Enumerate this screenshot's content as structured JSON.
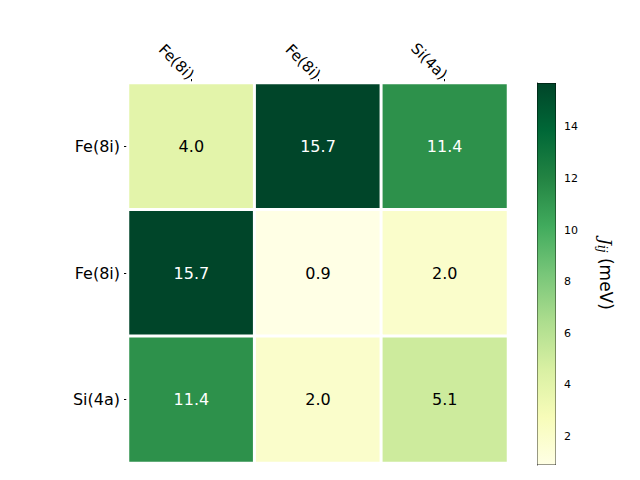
{
  "chart_data": {
    "type": "heatmap",
    "x_categories": [
      "Fe(8i)",
      "Fe(8i)",
      "Si(4a)"
    ],
    "y_categories": [
      "Fe(8i)",
      "Fe(8i)",
      "Si(4a)"
    ],
    "values": [
      [
        4.0,
        15.7,
        11.4
      ],
      [
        15.7,
        0.9,
        2.0
      ],
      [
        11.4,
        2.0,
        5.1
      ]
    ],
    "value_labels": [
      [
        "4.0",
        "15.7",
        "11.4"
      ],
      [
        "15.7",
        "0.9",
        "2.0"
      ],
      [
        "11.4",
        "2.0",
        "5.1"
      ]
    ],
    "data_labels": true,
    "colorbar": {
      "label": {
        "symbol": "J",
        "subscript": "ij",
        "unit": "(meV)"
      },
      "range": [
        0.9,
        15.7
      ],
      "ticks": [
        2,
        4,
        6,
        8,
        10,
        12,
        14
      ]
    }
  }
}
